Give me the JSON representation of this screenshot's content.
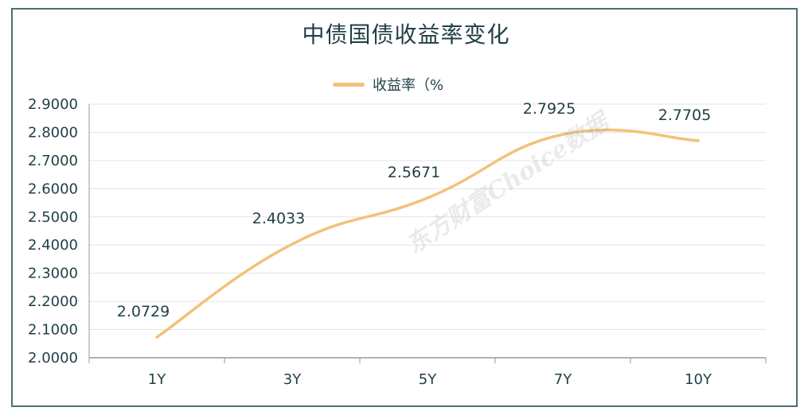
{
  "chart_data": {
    "type": "line",
    "title": "中债国债收益率变化",
    "categories": [
      "1Y",
      "3Y",
      "5Y",
      "7Y",
      "10Y"
    ],
    "series": [
      {
        "name": "收益率（%",
        "values": [
          2.0729,
          2.4033,
          2.5671,
          2.7925,
          2.7705
        ],
        "color": "#f2c27a"
      }
    ],
    "data_labels": [
      "2.0729",
      "2.4033",
      "2.5671",
      "2.7925",
      "2.7705"
    ],
    "y_ticks": [
      "2.9000",
      "2.8000",
      "2.7000",
      "2.6000",
      "2.5000",
      "2.4000",
      "2.3000",
      "2.2000",
      "2.1000",
      "2.0000"
    ],
    "ylim": [
      2.0,
      2.9
    ],
    "grid": true,
    "legend_position": "top-center",
    "watermark": "东方财富Choice数据"
  }
}
